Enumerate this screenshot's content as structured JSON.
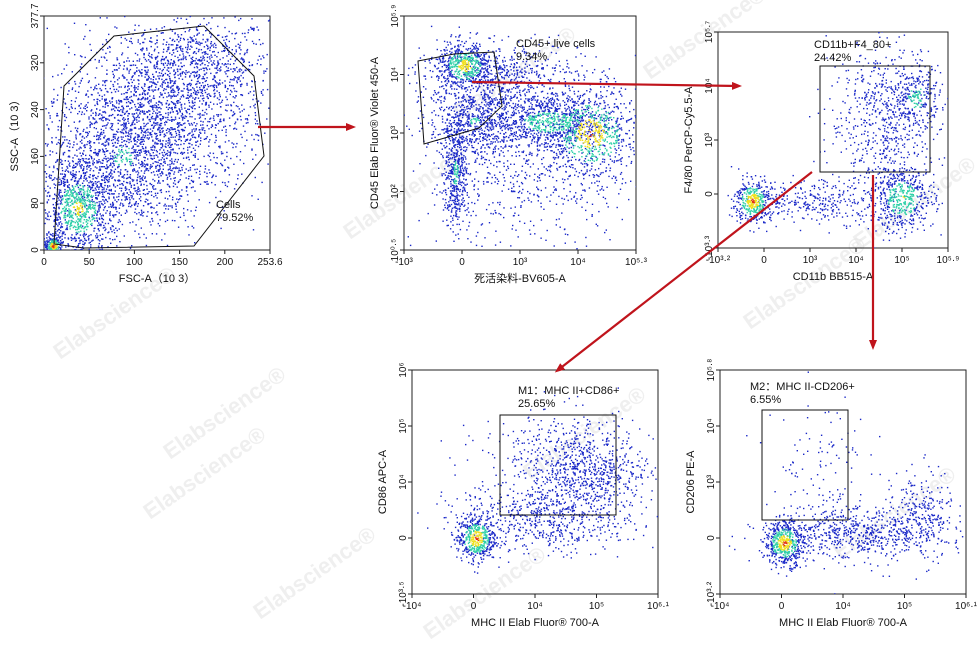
{
  "watermark": "Elabscience",
  "watermark_symbol": "®",
  "colors": {
    "arrow": "#c0141c",
    "gate": "#111111",
    "density_low": "#1a28c8",
    "density_mid": "#2fd0a8",
    "density_high": "#f0e020",
    "density_peak": "#e03010"
  },
  "chart_data": [
    {
      "id": "cells",
      "type": "scatter",
      "xlabel": "FSC-A（10 3）",
      "ylabel": "SSC-A（10 3）",
      "x_ticks": [
        "0",
        "50",
        "100",
        "150",
        "200",
        "253.6"
      ],
      "y_ticks": [
        "0",
        "80",
        "160",
        "240",
        "320",
        "377.7"
      ],
      "x_range": [
        0,
        253.6
      ],
      "y_range": [
        0,
        377.7
      ],
      "gate": {
        "name": "Cells",
        "percent": "79.52%"
      }
    },
    {
      "id": "cd45_live",
      "type": "scatter",
      "xlabel": "死活染料-BV605-A",
      "ylabel": "CD45 Elab Fluor® Violet 450-A",
      "x_ticks": [
        "-10³",
        "0",
        "10³",
        "10⁴",
        "10⁵·³"
      ],
      "y_ticks": [
        "10⁰·⁵",
        "10²",
        "10³",
        "10⁴",
        "10⁵·⁹"
      ],
      "gate": {
        "name": "CD45+ live cells",
        "percent": "9.34%"
      }
    },
    {
      "id": "cd11b_f480",
      "type": "scatter",
      "xlabel": "CD11b BB515-A",
      "ylabel": "F4/80 PerCP-Cy5.5-A",
      "x_ticks": [
        "-10³·²",
        "0",
        "10³",
        "10⁴",
        "10⁵",
        "10⁵·⁹"
      ],
      "y_ticks": [
        "-10³·³",
        "0",
        "10³",
        "10⁴",
        "10⁵·⁷"
      ],
      "gate": {
        "name": "CD11b+F4_80+",
        "percent": "24.42%"
      }
    },
    {
      "id": "m1",
      "type": "scatter",
      "xlabel": "MHC II Elab Fluor® 700-A",
      "ylabel": "CD86 APC-A",
      "x_ticks": [
        "-10⁴",
        "0",
        "10⁴",
        "10⁵",
        "10⁶·¹"
      ],
      "y_ticks": [
        "-10³·⁵",
        "0",
        "10⁴",
        "10⁵",
        "10⁶"
      ],
      "gate": {
        "name": "M1：MHC II+CD86+",
        "percent": "25.65%"
      }
    },
    {
      "id": "m2",
      "type": "scatter",
      "xlabel": "MHC II Elab Fluor® 700-A",
      "ylabel": "CD206 PE-A",
      "x_ticks": [
        "-10⁴",
        "0",
        "10⁴",
        "10⁵",
        "10⁶·¹"
      ],
      "y_ticks": [
        "-10³·²",
        "0",
        "10³",
        "10⁴",
        "10⁵·⁸"
      ],
      "gate": {
        "name": "M2：MHC II-CD206+",
        "percent": "6.55%"
      }
    }
  ]
}
